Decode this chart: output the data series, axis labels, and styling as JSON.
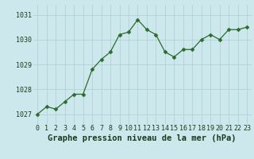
{
  "x": [
    0,
    1,
    2,
    3,
    4,
    5,
    6,
    7,
    8,
    9,
    10,
    11,
    12,
    13,
    14,
    15,
    16,
    17,
    18,
    19,
    20,
    21,
    22,
    23
  ],
  "y": [
    1027.0,
    1027.3,
    1027.2,
    1027.5,
    1027.8,
    1027.8,
    1028.8,
    1029.2,
    1029.5,
    1030.2,
    1030.3,
    1030.8,
    1030.4,
    1030.2,
    1029.5,
    1029.3,
    1029.6,
    1029.6,
    1030.0,
    1030.2,
    1030.0,
    1030.4,
    1030.4,
    1030.5
  ],
  "line_color": "#2d6a2d",
  "marker": "D",
  "marker_size": 2.5,
  "bg_color": "#cce8ec",
  "grid_color": "#aacdd2",
  "xlabel": "Graphe pression niveau de la mer (hPa)",
  "xlabel_color": "#1a3a1a",
  "xlabel_fontsize": 7.5,
  "tick_label_color": "#1a3a1a",
  "tick_fontsize": 6.0,
  "ylim": [
    1026.6,
    1031.4
  ],
  "yticks": [
    1027,
    1028,
    1029,
    1030,
    1031
  ],
  "xticks": [
    0,
    1,
    2,
    3,
    4,
    5,
    6,
    7,
    8,
    9,
    10,
    11,
    12,
    13,
    14,
    15,
    16,
    17,
    18,
    19,
    20,
    21,
    22,
    23
  ],
  "xtick_labels": [
    "0",
    "1",
    "2",
    "3",
    "4",
    "5",
    "6",
    "7",
    "8",
    "9",
    "10",
    "11",
    "12",
    "13",
    "14",
    "15",
    "16",
    "17",
    "18",
    "19",
    "20",
    "21",
    "22",
    "23"
  ]
}
